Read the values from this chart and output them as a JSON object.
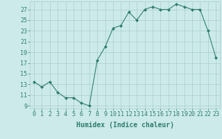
{
  "x": [
    0,
    1,
    2,
    3,
    4,
    5,
    6,
    7,
    8,
    9,
    10,
    11,
    12,
    13,
    14,
    15,
    16,
    17,
    18,
    19,
    20,
    21,
    22,
    23
  ],
  "y": [
    13.5,
    12.5,
    13.5,
    11.5,
    10.5,
    10.5,
    9.5,
    9.0,
    17.5,
    20.0,
    23.5,
    24.0,
    26.5,
    25.0,
    27.0,
    27.5,
    27.0,
    27.0,
    28.0,
    27.5,
    27.0,
    27.0,
    23.0,
    18.0
  ],
  "line_color": "#2e7d6e",
  "marker": "D",
  "marker_size": 2.0,
  "bg_color": "#cceaea",
  "grid_color": "#aacccc",
  "xlabel": "Humidex (Indice chaleur)",
  "ylim": [
    8.5,
    28.5
  ],
  "xlim": [
    -0.5,
    23.5
  ],
  "yticks": [
    9,
    11,
    13,
    15,
    17,
    19,
    21,
    23,
    25,
    27
  ],
  "xticks": [
    0,
    1,
    2,
    3,
    4,
    5,
    6,
    7,
    8,
    9,
    10,
    11,
    12,
    13,
    14,
    15,
    16,
    17,
    18,
    19,
    20,
    21,
    22,
    23
  ],
  "tick_color": "#2e7d6e",
  "label_fontsize": 7.0,
  "tick_fontsize": 6.0
}
